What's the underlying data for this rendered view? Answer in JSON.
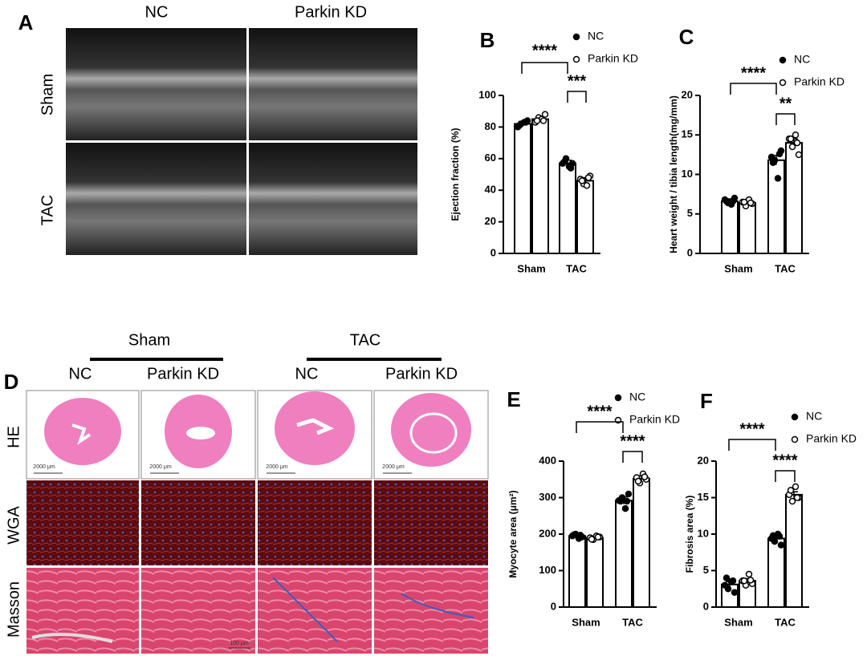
{
  "figure": {
    "panel_a": {
      "letter": "A",
      "columns": [
        "NC",
        "Parkin KD"
      ],
      "rows": [
        "Sham",
        "TAC"
      ]
    },
    "panel_d": {
      "letter": "D",
      "groups": [
        "Sham",
        "TAC"
      ],
      "columns": [
        "NC",
        "Parkin KD",
        "NC",
        "Parkin KD"
      ],
      "rows": [
        "HE",
        "WGA",
        "Masson"
      ],
      "scale_bars": [
        "2000 μm",
        "2000 μm",
        "2000 μm",
        "2000 μm",
        "100 μm"
      ]
    }
  },
  "chart_data": [
    {
      "type": "bar",
      "panel": "B",
      "ylabel": "Ejection fraction (%)",
      "categories": [
        "Sham",
        "TAC"
      ],
      "series": [
        {
          "name": "NC",
          "color": "#000000",
          "marker": "filled",
          "values": [
            82,
            57
          ],
          "errors": [
            1.5,
            2
          ],
          "points": [
            [
              80,
              82,
              83,
              84,
              81,
              83
            ],
            [
              57,
              60,
              55,
              57,
              58,
              54
            ]
          ]
        },
        {
          "name": "Parkin KD",
          "color": "#000000",
          "marker": "open",
          "values": [
            85,
            46
          ],
          "errors": [
            1.5,
            2
          ],
          "points": [
            [
              83,
              86,
              85,
              88,
              84,
              84
            ],
            [
              47,
              44,
              43,
              49,
              46,
              48
            ]
          ]
        }
      ],
      "ylim": [
        0,
        100
      ],
      "yticks": [
        0,
        20,
        40,
        60,
        80,
        100
      ],
      "annotations": [
        "****",
        "***"
      ]
    },
    {
      "type": "bar",
      "panel": "C",
      "ylabel": "Heart weight / tibia length(mg/mm)",
      "categories": [
        "Sham",
        "TAC"
      ],
      "series": [
        {
          "name": "NC",
          "color": "#000000",
          "marker": "filled",
          "values": [
            6.6,
            11.8
          ],
          "errors": [
            0.3,
            0.6
          ],
          "points": [
            [
              6.8,
              6.4,
              6.2,
              7.0,
              6.6,
              6.6
            ],
            [
              12.2,
              11.8,
              9.5,
              13.0,
              11.5,
              12.6
            ]
          ]
        },
        {
          "name": "Parkin KD",
          "color": "#000000",
          "marker": "open",
          "values": [
            6.4,
            14.0
          ],
          "errors": [
            0.3,
            0.5
          ],
          "points": [
            [
              6.5,
              6.0,
              6.8,
              6.3,
              6.5,
              6.4
            ],
            [
              14.5,
              13.5,
              15.0,
              12.5,
              14.5,
              14.0
            ]
          ]
        }
      ],
      "ylim": [
        0,
        20
      ],
      "yticks": [
        0,
        5,
        10,
        15,
        20
      ],
      "annotations": [
        "****",
        "**"
      ]
    },
    {
      "type": "bar",
      "panel": "E",
      "ylabel": "Myocyte area (μm²)",
      "categories": [
        "Sham",
        "TAC"
      ],
      "series": [
        {
          "name": "NC",
          "color": "#000000",
          "marker": "filled",
          "values": [
            195,
            292
          ],
          "errors": [
            5,
            10
          ],
          "points": [
            [
              195,
              200,
              188,
              192,
              198,
              197
            ],
            [
              292,
              300,
              270,
              310,
              290,
              290
            ]
          ]
        },
        {
          "name": "Parkin KD",
          "color": "#000000",
          "marker": "open",
          "values": [
            190,
            352
          ],
          "errors": [
            5,
            8
          ],
          "points": [
            [
              190,
              185,
              195,
              192,
              186,
              192
            ],
            [
              355,
              340,
              365,
              350,
              345,
              357
            ]
          ]
        }
      ],
      "ylim": [
        0,
        400
      ],
      "yticks": [
        0,
        100,
        200,
        300,
        400
      ],
      "annotations": [
        "****",
        "****"
      ]
    },
    {
      "type": "bar",
      "panel": "F",
      "ylabel": "Fibrosis area (%)",
      "categories": [
        "Sham",
        "TAC"
      ],
      "series": [
        {
          "name": "NC",
          "color": "#000000",
          "marker": "filled",
          "values": [
            3.1,
            9.4
          ],
          "errors": [
            0.4,
            0.3
          ],
          "points": [
            [
              3.0,
              2.5,
              3.5,
              2.0,
              4.0,
              3.6
            ],
            [
              9.4,
              9.0,
              10.0,
              8.5,
              9.8,
              9.7
            ]
          ]
        },
        {
          "name": "Parkin KD",
          "color": "#000000",
          "marker": "open",
          "values": [
            3.6,
            15.4
          ],
          "errors": [
            0.3,
            0.4
          ],
          "points": [
            [
              3.6,
              3.0,
              4.5,
              3.2,
              3.6,
              3.7
            ],
            [
              15.4,
              14.5,
              16.5,
              15.0,
              16.0,
              15.0
            ]
          ]
        }
      ],
      "ylim": [
        0,
        20
      ],
      "yticks": [
        0,
        5,
        10,
        15,
        20
      ],
      "annotations": [
        "****",
        "****"
      ]
    }
  ]
}
